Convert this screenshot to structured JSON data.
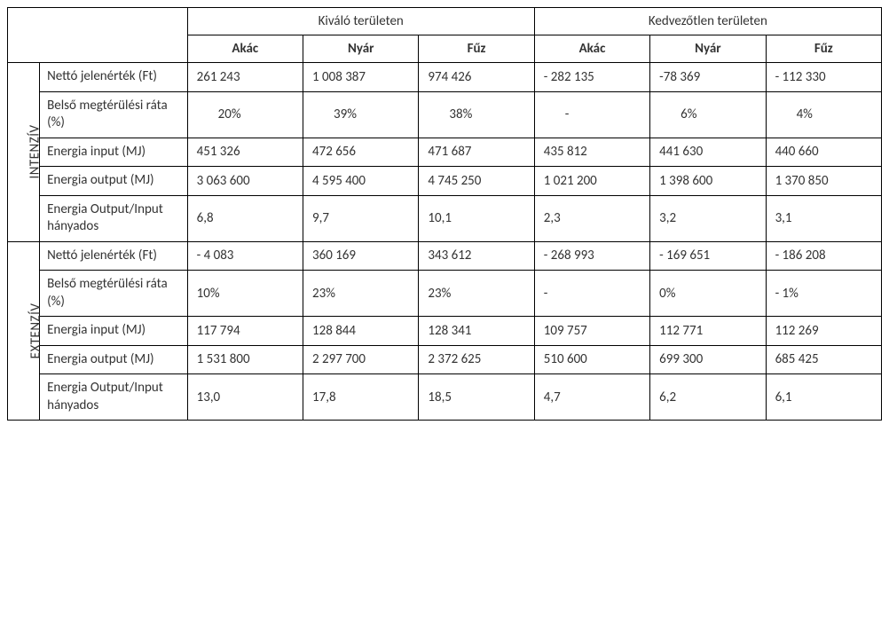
{
  "headers": {
    "group1": "Kiváló területen",
    "group2": "Kedvezőtlen területen",
    "col1": "Akác",
    "col2": "Nyár",
    "col3": "Fűz",
    "col4": "Akác",
    "col5": "Nyár",
    "col6": "Fűz"
  },
  "groups": {
    "g1": "INTENZÍV",
    "g2": "EXTENZÍV"
  },
  "rowLabels": {
    "r1": "Nettó jelenérték (Ft)",
    "r2": "Belső megtérülési ráta (%)",
    "r3": "Energia input (MJ)",
    "r4": "Energia output (MJ)",
    "r5": "Energia Output/Input hányados"
  },
  "intenziv": {
    "r1": {
      "c1": "261 243",
      "c2": "1 008 387",
      "c3": "974 426",
      "c4": "- 282 135",
      "c5": "-78 369",
      "c6": "- 112 330"
    },
    "r2": {
      "c1": "20%",
      "c2": "39%",
      "c3": "38%",
      "c4": "-",
      "c5": "6%",
      "c6": "4%"
    },
    "r3": {
      "c1": "451 326",
      "c2": "472 656",
      "c3": "471 687",
      "c4": "435 812",
      "c5": "441 630",
      "c6": "440 660"
    },
    "r4": {
      "c1": "3 063 600",
      "c2": "4 595 400",
      "c3": "4 745 250",
      "c4": "1 021 200",
      "c5": "1 398 600",
      "c6": "1 370 850"
    },
    "r5": {
      "c1": "6,8",
      "c2": "9,7",
      "c3": "10,1",
      "c4": "2,3",
      "c5": "3,2",
      "c6": "3,1"
    }
  },
  "extenziv": {
    "r1": {
      "c1": "- 4 083",
      "c2": "360 169",
      "c3": "343 612",
      "c4": "- 268 993",
      "c5": "- 169 651",
      "c6": "- 186 208"
    },
    "r2": {
      "c1": "10%",
      "c2": "23%",
      "c3": "23%",
      "c4": "-",
      "c5": "0%",
      "c6": "- 1%"
    },
    "r3": {
      "c1": "117 794",
      "c2": "128 844",
      "c3": "128 341",
      "c4": "109 757",
      "c5": "112 771",
      "c6": "112 269"
    },
    "r4": {
      "c1": "1 531 800",
      "c2": "2 297 700",
      "c3": "2 372 625",
      "c4": "510 600",
      "c5": "699 300",
      "c6": "685 425"
    },
    "r5": {
      "c1": "13,0",
      "c2": "17,8",
      "c3": "18,5",
      "c4": "4,7",
      "c5": "6,2",
      "c6": "6,1"
    }
  }
}
